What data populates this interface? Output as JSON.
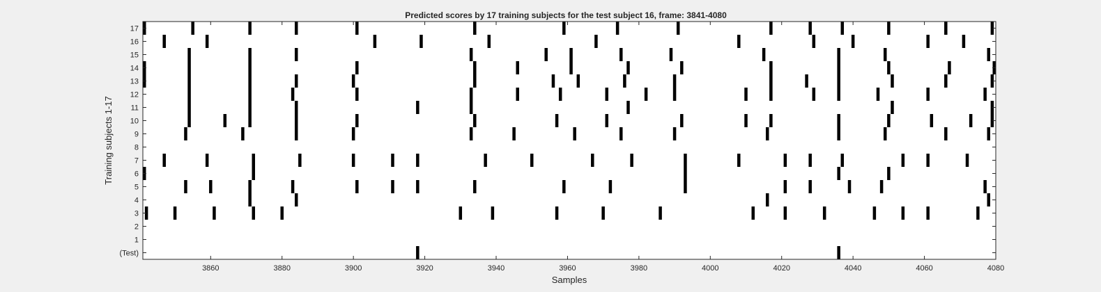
{
  "chart_data": {
    "type": "heatmap",
    "title": "Predicted scores by 17 training subjects for the test subject 16, frame: 3841-4080",
    "xlabel": "Samples",
    "ylabel": "Training subjects 1-17",
    "xlim": [
      3841,
      4080
    ],
    "x_ticks": [
      3860,
      3880,
      3900,
      3920,
      3940,
      3960,
      3980,
      4000,
      4020,
      4040,
      4060,
      4080
    ],
    "y_tick_labels": [
      "17",
      "16",
      "15",
      "14",
      "13",
      "12",
      "11",
      "10",
      "9",
      "8",
      "7",
      "6",
      "5",
      "4",
      "3",
      "2",
      "1",
      "(Test)"
    ],
    "colors": {
      "mark": "#000000",
      "plot_background": "#ffffff",
      "figure_background": "#f0f0f0"
    },
    "rows": [
      {
        "label": "17",
        "x": [
          3841,
          3855,
          3871,
          3884,
          3901,
          3934,
          3959,
          3974,
          3991,
          4017,
          4028,
          4037,
          4050,
          4066,
          4079
        ]
      },
      {
        "label": "16",
        "x": [
          3847,
          3859,
          3906,
          3919,
          3938,
          3968,
          4008,
          4029,
          4040,
          4061,
          4071
        ]
      },
      {
        "label": "15",
        "x": [
          3854,
          3871,
          3884,
          3933,
          3954,
          3961,
          3975,
          3989,
          4015,
          4036,
          4049,
          4078
        ]
      },
      {
        "label": "14",
        "x": [
          3841,
          3854,
          3871,
          3901,
          3934,
          3946,
          3961,
          3977,
          3992,
          4017,
          4036,
          4050,
          4067,
          4080
        ]
      },
      {
        "label": "13",
        "x": [
          3841,
          3854,
          3871,
          3884,
          3900,
          3934,
          3956,
          3963,
          3976,
          3990,
          4017,
          4027,
          4036,
          4051,
          4066,
          4079
        ]
      },
      {
        "label": "12",
        "x": [
          3854,
          3871,
          3883,
          3901,
          3933,
          3946,
          3958,
          3971,
          3982,
          3990,
          4010,
          4017,
          4029,
          4036,
          4047,
          4061,
          4077
        ]
      },
      {
        "label": "11",
        "x": [
          3854,
          3871,
          3884,
          3918,
          3933,
          3977,
          4051,
          4079
        ]
      },
      {
        "label": "10",
        "x": [
          3854,
          3864,
          3871,
          3884,
          3901,
          3934,
          3957,
          3971,
          3992,
          4010,
          4017,
          4036,
          4050,
          4062,
          4073,
          4079
        ]
      },
      {
        "label": "9",
        "x": [
          3853,
          3869,
          3884,
          3900,
          3933,
          3945,
          3962,
          3975,
          3990,
          4016,
          4036,
          4049,
          4066,
          4078
        ]
      },
      {
        "label": "8",
        "x": []
      },
      {
        "label": "7",
        "x": [
          3847,
          3859,
          3872,
          3885,
          3900,
          3911,
          3918,
          3937,
          3950,
          3967,
          3978,
          3993,
          4008,
          4021,
          4028,
          4037,
          4054,
          4061,
          4072
        ]
      },
      {
        "label": "6",
        "x": [
          3841,
          3872,
          3993,
          4036,
          4050
        ]
      },
      {
        "label": "5",
        "x": [
          3853,
          3860,
          3871,
          3883,
          3901,
          3911,
          3918,
          3934,
          3959,
          3972,
          3993,
          4021,
          4028,
          4039,
          4048,
          4077
        ]
      },
      {
        "label": "4",
        "x": [
          3871,
          3884,
          4016,
          4078
        ]
      },
      {
        "label": "3",
        "x": [
          3842,
          3850,
          3861,
          3872,
          3880,
          3930,
          3939,
          3957,
          3970,
          3986,
          4012,
          4021,
          4032,
          4046,
          4054,
          4061,
          4075
        ]
      },
      {
        "label": "2",
        "x": []
      },
      {
        "label": "1",
        "x": []
      },
      {
        "label": "(Test)",
        "x": [
          3918,
          4036
        ]
      }
    ]
  }
}
